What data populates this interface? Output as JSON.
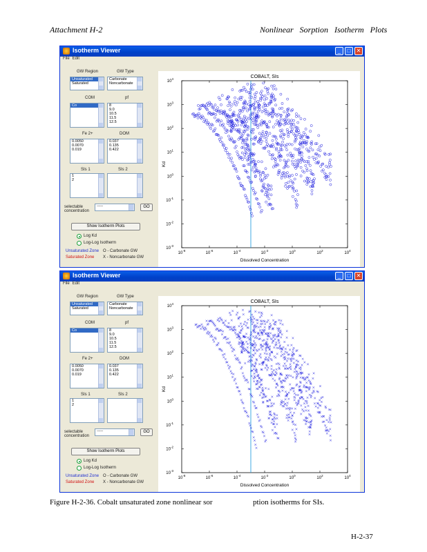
{
  "page": {
    "header_left": "Attachment    H-2",
    "header_right": "Nonlinear Sorption Isotherm Plots",
    "caption_main": "Figure H-2-36. Cobalt unsaturated zone nonlinear sor",
    "caption_tail": "ption isotherms for SIs.",
    "page_number": "H-2-37"
  },
  "windows": [
    {
      "title": "Isotherm Viewer",
      "menu": [
        "File",
        "Edit"
      ],
      "labels": {
        "gw_region": "GW Region",
        "gw_type": "GW Type",
        "com": "COM",
        "pf": "pf",
        "fe2": "Fe 2+",
        "doc": "DOM",
        "sis1": "SIs 1",
        "sis2": "SIs 2",
        "selectable_concentration": "selectable concentration",
        "show_isotherm_plots": "Show Isotherm Plots",
        "log_kd": "Log Kd",
        "log_isotherm": "Log-Log Isotherm"
      },
      "lists": {
        "gw_region": [
          "Unsaturated",
          "Saturated"
        ],
        "gw_type": [
          "Carbonate",
          "Noncarbonate"
        ],
        "com": [
          "Co"
        ],
        "pf": [
          "8",
          "9.0",
          "10.5",
          "11.5",
          "12.5"
        ],
        "fe2": [
          "0.0050",
          "0.0070",
          "0.019"
        ],
        "doc": [
          "0.037",
          "0.135",
          "0.422"
        ],
        "sis1": [
          "1",
          "2"
        ],
        "sis2": []
      },
      "select_value": "-----",
      "go_label": "GO",
      "legend": {
        "unsaturated": "Unsaturated Zone",
        "saturated": "Saturated Zone",
        "carbonate": "O - Carbonate GW",
        "noncarbonate": "X - Noncarbonate GW"
      }
    },
    {
      "title": "Isotherm Viewer",
      "menu": [
        "File",
        "Edit"
      ],
      "labels": {
        "gw_region": "GW Region",
        "gw_type": "GW Type",
        "com": "COM",
        "pf": "pf",
        "fe2": "Fe 2+",
        "doc": "DOM",
        "sis1": "SIs 1",
        "sis2": "SIs 2",
        "selectable_concentration": "selectable concentration",
        "show_isotherm_plots": "Show Isotherm Plots",
        "log_kd": "Log Kd",
        "log_isotherm": "Log-Log Isotherm"
      },
      "lists": {
        "gw_region": [
          "Unsaturated",
          "Saturated"
        ],
        "gw_type": [
          "Carbonate",
          "Noncarbonate"
        ],
        "com": [
          "Co"
        ],
        "pf": [
          "8",
          "9.0",
          "10.5",
          "11.5",
          "12.5"
        ],
        "fe2": [
          "0.0050",
          "0.0070",
          "0.019"
        ],
        "doc": [
          "0.037",
          "0.135",
          "0.422"
        ],
        "sis1": [
          "1",
          "2"
        ],
        "sis2": []
      },
      "select_value": "-----",
      "go_label": "GO",
      "legend": {
        "unsaturated": "Unsaturated Zone",
        "saturated": "Saturated Zone",
        "carbonate": "O - Carbonate GW",
        "noncarbonate": "X - Noncarbonate GW"
      }
    }
  ],
  "chart_data": [
    {
      "type": "scatter",
      "title": "COBALT, SIs",
      "xlabel": "Dissolved Concentration",
      "ylabel": "Kd",
      "xscale": "log",
      "yscale": "log",
      "xlim": [
        1e-08,
        10000.0
      ],
      "ylim": [
        0.001,
        10000.0
      ],
      "xticks": [
        "10^-8",
        "10^-6",
        "10^-4",
        "10^-2",
        "10^0",
        "10^2",
        "10^4"
      ],
      "yticks": [
        "10^-3",
        "10^-2",
        "10^-1",
        "10^0",
        "10^1",
        "10^2",
        "10^3",
        "10^4"
      ],
      "vertical_line_x": 0.001,
      "marker": "o",
      "color": "#1f1fe0",
      "series_params": [
        {
          "logx_start": -7.2,
          "logy_start": 2.6,
          "logx_end": -2.9,
          "logy_end": -1.6
        },
        {
          "logx_start": -6.8,
          "logy_start": 2.9,
          "logx_end": -2.2,
          "logy_end": -1.5
        },
        {
          "logx_start": -6.2,
          "logy_start": 3.0,
          "logx_end": -1.4,
          "logy_end": -1.4
        },
        {
          "logx_start": -5.4,
          "logy_start": 3.1,
          "logx_end": 0.4,
          "logy_end": -1.0
        },
        {
          "logx_start": -4.6,
          "logy_start": 3.3,
          "logx_end": 1.6,
          "logy_end": -0.5
        },
        {
          "logx_start": -3.6,
          "logy_start": 3.5,
          "logx_end": 2.8,
          "logy_end": 0.0
        }
      ]
    },
    {
      "type": "scatter",
      "title": "COBALT, SIs",
      "xlabel": "Dissolved Concentration",
      "ylabel": "Kd",
      "xscale": "log",
      "yscale": "log",
      "xlim": [
        1e-08,
        10000.0
      ],
      "ylim": [
        0.001,
        10000.0
      ],
      "xticks": [
        "10^-8",
        "10^-6",
        "10^-4",
        "10^-2",
        "10^0",
        "10^2",
        "10^4"
      ],
      "yticks": [
        "10^-3",
        "10^-2",
        "10^-1",
        "10^0",
        "10^1",
        "10^2",
        "10^3",
        "10^4"
      ],
      "vertical_line_x": 0.001,
      "marker": "x",
      "color": "#1f1fe0",
      "series_params": [
        {
          "logx_start": -7.0,
          "logy_start": 3.2,
          "logx_end": -2.6,
          "logy_end": -1.9
        },
        {
          "logx_start": -6.2,
          "logy_start": 3.3,
          "logx_end": -1.9,
          "logy_end": -1.7
        },
        {
          "logx_start": -5.4,
          "logy_start": 3.4,
          "logx_end": -1.0,
          "logy_end": -1.6
        },
        {
          "logx_start": -4.6,
          "logy_start": 3.5,
          "logx_end": 0.3,
          "logy_end": -1.4
        },
        {
          "logx_start": -3.8,
          "logy_start": 3.5,
          "logx_end": 1.4,
          "logy_end": -1.2
        },
        {
          "logx_start": -3.0,
          "logy_start": 3.4,
          "logx_end": 2.8,
          "logy_end": -1.3
        }
      ]
    }
  ]
}
